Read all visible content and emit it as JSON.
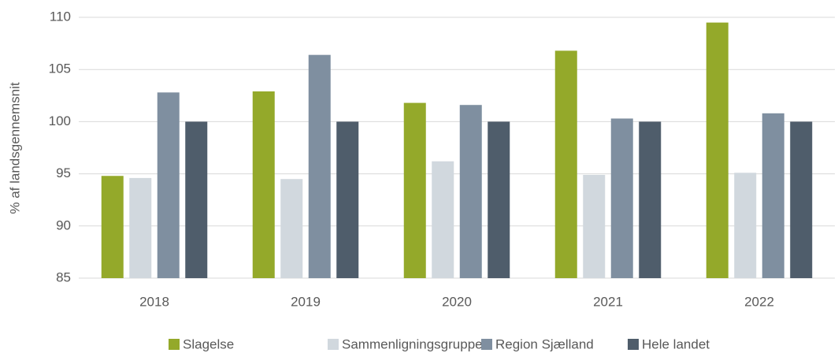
{
  "chart_data": {
    "type": "bar",
    "y_label": "% af landsgennemsnit",
    "categories": [
      "2018",
      "2019",
      "2020",
      "2021",
      "2022"
    ],
    "series": [
      {
        "name": "Slagelse",
        "color": "#94a92a",
        "values": [
          94.8,
          102.9,
          101.8,
          106.8,
          109.5
        ]
      },
      {
        "name": "Sammenligningsgruppen",
        "color": "#d1d8de",
        "values": [
          94.6,
          94.5,
          96.2,
          94.9,
          95.1
        ]
      },
      {
        "name": "Region Sjælland",
        "color": "#7f8fa0",
        "values": [
          102.8,
          106.4,
          101.6,
          100.3,
          100.8
        ]
      },
      {
        "name": "Hele landet",
        "color": "#4f5d6b",
        "values": [
          100,
          100,
          100,
          100,
          100
        ]
      }
    ],
    "ylim": [
      85,
      110
    ],
    "yticks": [
      85,
      90,
      95,
      100,
      105,
      110
    ],
    "grid": true,
    "legend": "bottom"
  }
}
